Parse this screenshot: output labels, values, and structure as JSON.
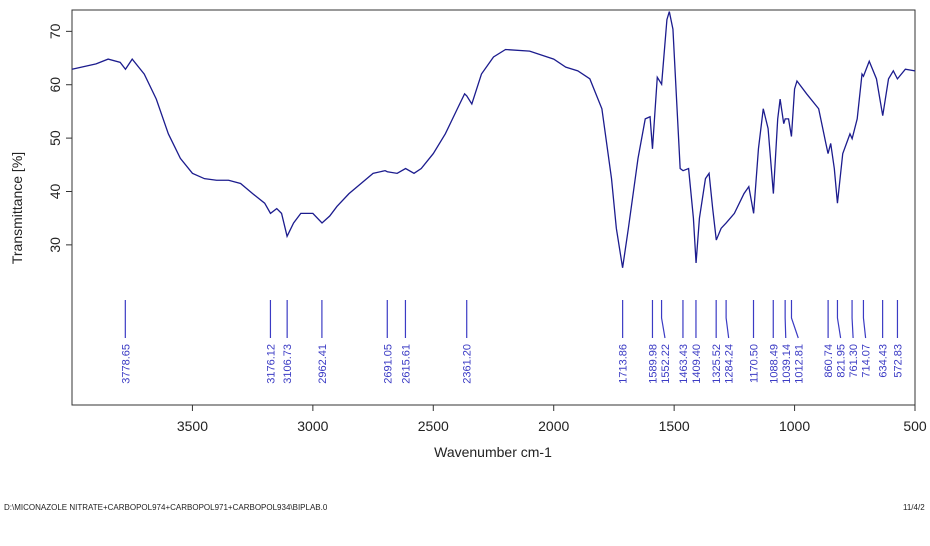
{
  "chart_data": {
    "type": "line",
    "xlabel": "Wavenumber cm-1",
    "ylabel": "Transmittance [%]",
    "xlim": [
      4000,
      500
    ],
    "ylim": [
      0,
      74
    ],
    "xticks": [
      3500,
      3000,
      2500,
      2000,
      1500,
      1000,
      500
    ],
    "yticks": [
      30,
      40,
      50,
      60,
      70
    ],
    "series": [
      {
        "name": "BIPLAB.0",
        "color": "#1c1c8e",
        "x": [
          4000,
          3900,
          3850,
          3800,
          3778,
          3750,
          3700,
          3650,
          3600,
          3550,
          3500,
          3450,
          3400,
          3350,
          3300,
          3250,
          3200,
          3176,
          3150,
          3130,
          3107,
          3080,
          3050,
          3000,
          2962,
          2930,
          2900,
          2850,
          2800,
          2750,
          2700,
          2691,
          2650,
          2615,
          2580,
          2550,
          2500,
          2450,
          2400,
          2370,
          2361,
          2340,
          2300,
          2250,
          2200,
          2100,
          2000,
          1950,
          1900,
          1850,
          1800,
          1760,
          1740,
          1714,
          1690,
          1650,
          1620,
          1600,
          1590,
          1570,
          1552,
          1530,
          1520,
          1505,
          1490,
          1475,
          1463,
          1440,
          1420,
          1409,
          1395,
          1370,
          1355,
          1340,
          1325,
          1305,
          1284,
          1250,
          1210,
          1190,
          1170,
          1150,
          1130,
          1110,
          1088,
          1070,
          1060,
          1045,
          1039,
          1025,
          1013,
          1000,
          990,
          950,
          900,
          870,
          861,
          850,
          835,
          822,
          800,
          770,
          761,
          740,
          720,
          714,
          690,
          660,
          634,
          610,
          590,
          573,
          540,
          500
        ],
        "values": [
          62.9,
          63.9,
          64.8,
          64.2,
          62.9,
          64.8,
          62,
          57.3,
          50.8,
          46.2,
          43.4,
          42.4,
          42.1,
          42.1,
          41.5,
          39.6,
          37.8,
          35.9,
          36.8,
          35.9,
          31.6,
          34.1,
          35.9,
          35.9,
          34.1,
          35.4,
          37.2,
          39.6,
          41.5,
          43.4,
          43.9,
          43.7,
          43.4,
          44.3,
          43.4,
          44.3,
          47.1,
          50.8,
          55.5,
          58.3,
          57.9,
          56.4,
          62,
          65.2,
          66.6,
          66.3,
          64.8,
          63.3,
          62.6,
          61.1,
          55.5,
          42.4,
          33.1,
          25.7,
          33.1,
          46.2,
          53.6,
          54,
          48,
          61.4,
          60.1,
          72.2,
          73.7,
          70.4,
          57.3,
          44.3,
          43.9,
          44.3,
          35,
          26.6,
          35,
          42.4,
          43.4,
          36.8,
          30.9,
          33.1,
          34.1,
          35.9,
          39.6,
          40.9,
          35.9,
          48,
          55.5,
          51.8,
          39.6,
          53.6,
          57.3,
          52.7,
          53.6,
          53.6,
          50.3,
          59.2,
          60.7,
          58.3,
          55.5,
          49,
          47.1,
          49,
          44.3,
          37.8,
          47.1,
          50.8,
          49.9,
          53.6,
          62,
          61.6,
          64.4,
          61.1,
          54.2,
          61.1,
          62.6,
          61.1,
          62.9,
          62.6
        ]
      }
    ],
    "peaks": [
      3778.65,
      3176.12,
      3106.73,
      2962.41,
      2691.05,
      2615.61,
      2361.2,
      1713.86,
      1589.98,
      1552.22,
      1463.43,
      1409.4,
      1325.52,
      1284.24,
      1170.5,
      1088.49,
      1039.14,
      1012.81,
      860.74,
      821.95,
      761.3,
      714.07,
      634.43,
      572.83
    ],
    "peak_labels": [
      "3778.65",
      "3176.12",
      "3106.73",
      "2962.41",
      "2691.05",
      "2615.61",
      "2361.20",
      "1713.86",
      "1589.98",
      "1552.22",
      "1463.43",
      "1409.40",
      "1325.52",
      "1284.24",
      "1170.50",
      "1088.49",
      "1039.14",
      "1012.81",
      "860.74",
      "821.95",
      "761.30",
      "714.07",
      "634.43",
      "572.83"
    ],
    "footer_left": "D:\\MICONAZOLE NITRATE+CARBOPOL974+CARBOPOL971+CARBOPOL934\\BIPLAB.0",
    "footer_right": "11/4/2"
  }
}
